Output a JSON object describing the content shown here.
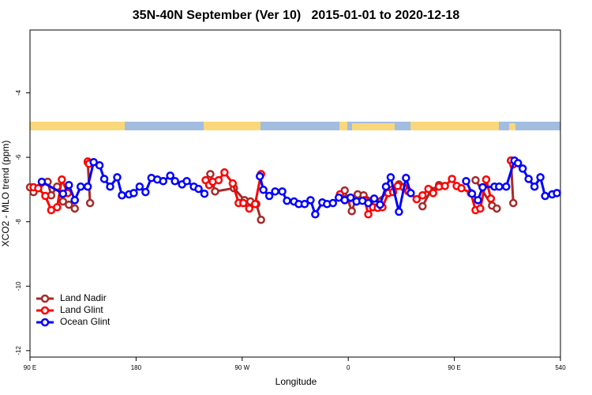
{
  "chart_data": {
    "type": "line",
    "title": "35N-40N September (Ver 10)   2015-01-01 to 2020-12-18",
    "xlabel": "Longitude",
    "ylabel": "XCO2 - MLO trend (ppm)",
    "xlim": [
      90,
      540
    ],
    "ylim": [
      -12.2,
      -2.05
    ],
    "xticks": [
      {
        "value": 90,
        "label": "90 E"
      },
      180,
      {
        "value": 270,
        "label": "90 W"
      },
      {
        "value": 360,
        "label": "0"
      },
      {
        "value": 450,
        "label": "90 E"
      },
      540
    ],
    "yticks": [
      -12,
      -10,
      -8,
      -6,
      -4
    ],
    "legend": "lower left",
    "series": [
      {
        "name": "Land Nadir",
        "color": "#a52a2a",
        "x": [
          90,
          93,
          105,
          108,
          113,
          118,
          123,
          128,
          null,
          139,
          141,
          null,
          243,
          247,
          263,
          272,
          277,
          282,
          286,
          null,
          357,
          363,
          368,
          373,
          383,
          397,
          403,
          null,
          423,
          430,
          437,
          null,
          468,
          482,
          486,
          null,
          498,
          500
        ],
        "values": [
          -6.93,
          -7.08,
          -6.76,
          -7.18,
          -6.91,
          -7.37,
          -7.47,
          -7.59,
          null,
          -6.15,
          -7.42,
          null,
          -6.52,
          -7.06,
          -6.96,
          -7.33,
          -7.37,
          -7.45,
          -7.94,
          null,
          -7.03,
          -7.67,
          -7.15,
          -7.18,
          -7.37,
          -7.01,
          -6.84,
          null,
          -7.52,
          -7.03,
          -6.86,
          null,
          -6.71,
          -7.5,
          -7.59,
          null,
          -6.1,
          -7.42
        ]
      },
      {
        "name": "Land Glint",
        "color": "#ff0000",
        "x": [
          93,
          97,
          103,
          108,
          113,
          117,
          122,
          null,
          139,
          140,
          null,
          239,
          242,
          245,
          250,
          255,
          262,
          267,
          271,
          276,
          281,
          286,
          null,
          353,
          361,
          367,
          374,
          377,
          381,
          385,
          389,
          394,
          398,
          402,
          407,
          411,
          418,
          423,
          428,
          432,
          437,
          442,
          448,
          452,
          456,
          464,
          468,
          472,
          477,
          481,
          null,
          498,
          500
        ],
        "values": [
          -6.93,
          -6.96,
          -7.2,
          -7.64,
          -7.55,
          -6.69,
          -7.11,
          null,
          -6.13,
          -6.2,
          null,
          -6.71,
          -6.86,
          -6.76,
          -6.71,
          -6.47,
          -6.81,
          -7.42,
          -7.42,
          -7.59,
          -7.45,
          -6.52,
          null,
          -7.15,
          -7.28,
          -7.37,
          -7.33,
          -7.77,
          -7.55,
          -7.57,
          -7.55,
          -7.11,
          -7.08,
          -6.89,
          -6.93,
          -7.06,
          -7.3,
          -7.18,
          -6.98,
          -7.11,
          -6.91,
          -6.89,
          -6.67,
          -6.89,
          -6.96,
          -7.11,
          -7.64,
          -7.59,
          -6.69,
          -7.28,
          null,
          -6.1,
          -6.22
        ]
      },
      {
        "name": "Ocean Glint",
        "color": "#0000ff",
        "x": [
          100,
          118,
          123,
          128,
          133,
          139,
          144,
          149,
          153,
          158,
          164,
          168,
          174,
          178,
          183,
          188,
          193,
          198,
          203,
          209,
          213,
          219,
          223,
          229,
          233,
          238,
          null,
          285,
          288,
          293,
          298,
          304,
          308,
          314,
          318,
          323,
          328,
          332,
          338,
          342,
          347,
          352,
          357,
          362,
          367,
          372,
          377,
          382,
          387,
          392,
          396,
          403,
          409,
          413,
          null,
          460,
          465,
          470,
          474,
          484,
          488,
          494,
          501,
          504,
          508,
          513,
          518,
          523,
          527,
          533,
          537
        ],
        "values": [
          -6.76,
          -7.13,
          -6.86,
          -7.33,
          -6.91,
          -6.91,
          -6.15,
          -6.25,
          -6.67,
          -6.91,
          -6.62,
          -7.18,
          -7.15,
          -7.11,
          -6.91,
          -7.08,
          -6.64,
          -6.69,
          -6.74,
          -6.57,
          -6.74,
          -6.84,
          -6.74,
          -6.91,
          -6.98,
          -7.13,
          null,
          -6.59,
          -7.01,
          -7.2,
          -7.06,
          -7.06,
          -7.35,
          -7.37,
          -7.45,
          -7.45,
          -7.33,
          -7.77,
          -7.4,
          -7.45,
          -7.42,
          -7.25,
          -7.33,
          -7.25,
          -7.37,
          -7.35,
          -7.42,
          -7.28,
          -7.47,
          -6.91,
          -6.62,
          -7.69,
          -6.64,
          -7.11,
          null,
          -6.74,
          -7.13,
          -7.33,
          -6.93,
          -6.91,
          -6.91,
          -6.91,
          -6.1,
          -6.18,
          -6.35,
          -6.67,
          -6.91,
          -6.62,
          -7.2,
          -7.15,
          -7.11
        ]
      }
    ]
  }
}
